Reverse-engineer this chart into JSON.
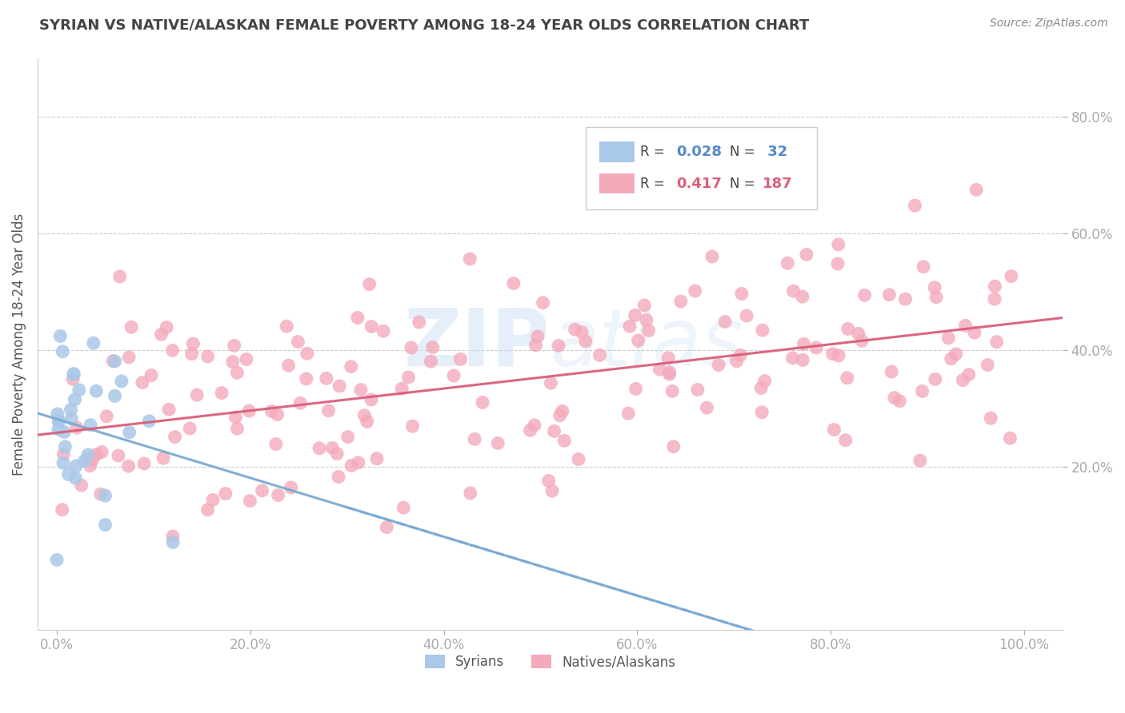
{
  "title": "SYRIAN VS NATIVE/ALASKAN FEMALE POVERTY AMONG 18-24 YEAR OLDS CORRELATION CHART",
  "source": "Source: ZipAtlas.com",
  "ylabel": "Female Poverty Among 18-24 Year Olds",
  "xlim": [
    -0.02,
    1.04
  ],
  "ylim": [
    -0.08,
    0.9
  ],
  "xticks": [
    0.0,
    0.2,
    0.4,
    0.6,
    0.8,
    1.0
  ],
  "xtick_labels": [
    "0.0%",
    "20.0%",
    "40.0%",
    "60.0%",
    "80.0%",
    "100.0%"
  ],
  "yticks": [
    0.2,
    0.4,
    0.6,
    0.8
  ],
  "ytick_labels": [
    "20.0%",
    "40.0%",
    "60.0%",
    "80.0%"
  ],
  "syrian_color": "#aac8e8",
  "native_color": "#f4aabb",
  "syrian_line_color": "#7baad4",
  "native_line_color": "#d95f7a",
  "watermark": "ZIPAtlas",
  "background_color": "#ffffff",
  "grid_color": "#cccccc",
  "title_color": "#444444",
  "axis_label_color": "#555555",
  "tick_color": "#5588cc",
  "syrian_R": 0.028,
  "native_R": 0.417,
  "syrian_N": 32,
  "native_N": 187
}
